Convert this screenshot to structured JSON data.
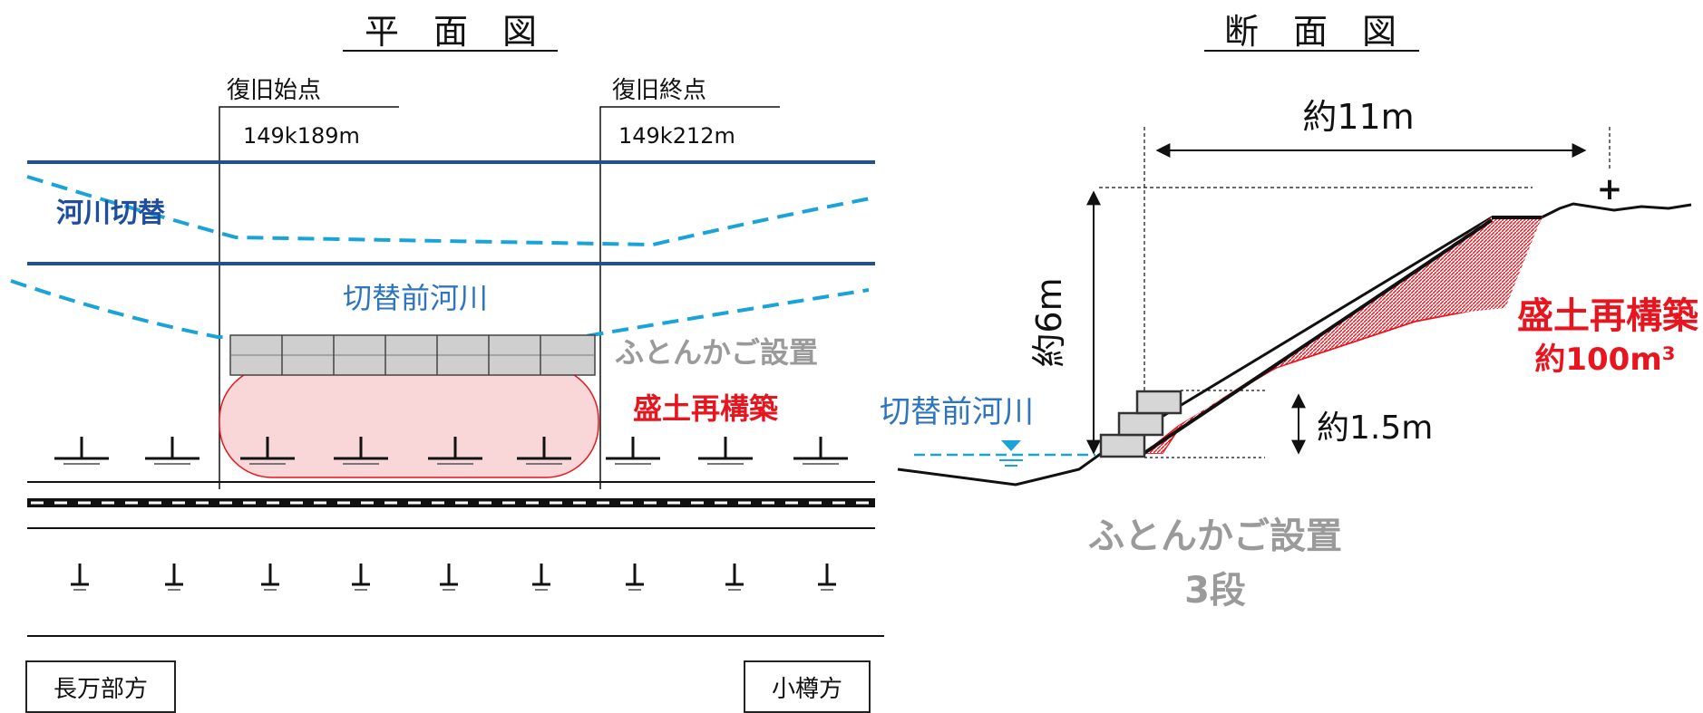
{
  "plan": {
    "title": "平　面　図",
    "start_label": "復旧始点",
    "start_km": "149k189m",
    "end_label": "復旧終点",
    "end_km": "149k212m",
    "river_switch": "河川切替",
    "old_river": "切替前河川",
    "gabion": "ふとんかご設置",
    "embankment": "盛土再構築",
    "dir_left": "長万部方",
    "dir_right": "小樽方"
  },
  "section": {
    "title": "断　面　図",
    "width_dim": "約11m",
    "height_dim": "約6m",
    "gabion_height_dim": "約1.5m",
    "old_river": "切替前河川",
    "embankment": "盛土再構築",
    "volume": "約100m³",
    "gabion": "ふとんかご設置",
    "gabion_steps": "3段",
    "crest_mark": "+"
  },
  "colors": {
    "river_line": "#1f4e9e",
    "dashed_river": "#1aa3d8",
    "old_river_text": "#2e75c0",
    "embankment_red": "#e8141e",
    "embankment_fill": "#f9d6d8",
    "gabion_gray": "#9a9a9a"
  }
}
